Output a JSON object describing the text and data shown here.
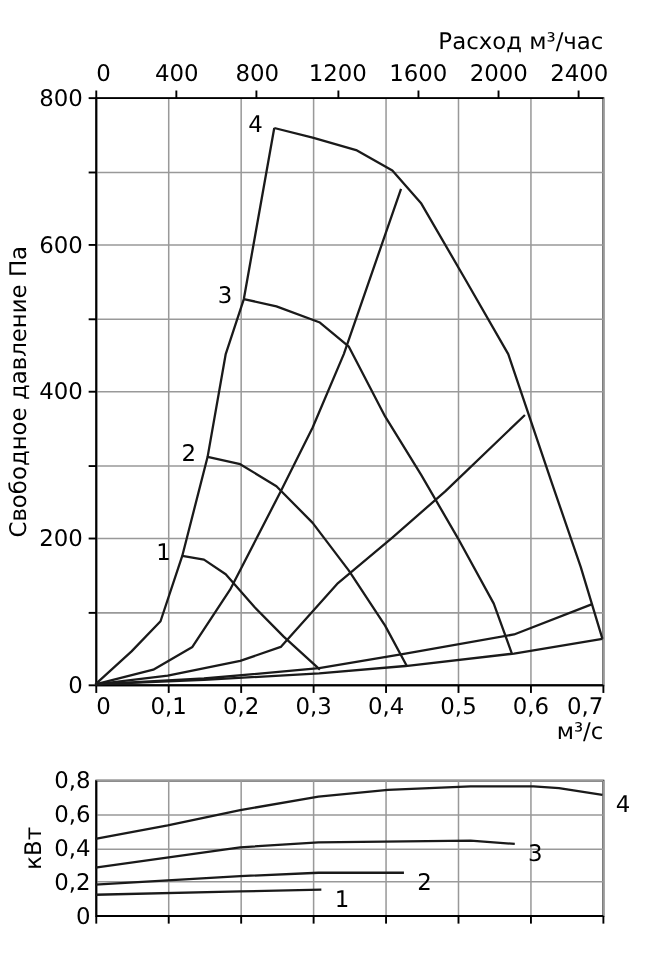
{
  "chart_data": [
    {
      "type": "line",
      "ylabel": "Свободное давление Па",
      "xlabel": "м³/с",
      "x2label": "Расход м³/час",
      "xlim": [
        0,
        0.7
      ],
      "xticks": [
        0,
        {
          "value": 0.1,
          "label": "0,1"
        },
        {
          "value": 0.2,
          "label": "0,2"
        },
        {
          "value": 0.3,
          "label": "0,3"
        },
        {
          "value": 0.4,
          "label": "0,4"
        },
        {
          "value": 0.5,
          "label": "0,5"
        },
        {
          "value": 0.6,
          "label": "0,6"
        },
        {
          "value": 0.7,
          "label": "0,7"
        }
      ],
      "ylim": [
        0,
        800
      ],
      "yticks": [
        0,
        {
          "value": 100,
          "label": null
        },
        200,
        {
          "value": 300,
          "label": null
        },
        400,
        {
          "value": 500,
          "label": null
        },
        600,
        {
          "value": 700,
          "label": null
        },
        800
      ],
      "x2lim": [
        0,
        2520
      ],
      "x2ticks": [
        0,
        400,
        800,
        1200,
        1600,
        2000,
        2400
      ],
      "grid": true,
      "marker": "none",
      "line_style": "solid",
      "series": [
        {
          "color": "#1a1a1a",
          "x": [
            0.12,
            0.15,
            0.18,
            0.22,
            0.26,
            0.31
          ],
          "values": [
            175,
            170,
            150,
            105,
            65,
            20
          ]
        },
        {
          "color": "#1a1a1a",
          "x": [
            0.155,
            0.2,
            0.25,
            0.3,
            0.35,
            0.4,
            0.43
          ],
          "values": [
            310,
            300,
            270,
            220,
            155,
            80,
            25
          ]
        },
        {
          "color": "#1a1a1a",
          "x": [
            0.205,
            0.25,
            0.31,
            0.35,
            0.4,
            0.45,
            0.5,
            0.55,
            0.575
          ],
          "values": [
            525,
            515,
            493,
            460,
            365,
            285,
            200,
            110,
            42
          ]
        },
        {
          "color": "#1a1a1a",
          "x": [
            0.247,
            0.3,
            0.36,
            0.41,
            0.45,
            0.51,
            0.57,
            0.63,
            0.67,
            0.7
          ],
          "values": [
            758,
            745,
            728,
            700,
            655,
            553,
            450,
            275,
            160,
            62
          ]
        },
        {
          "color": "#1a1a1a",
          "x": [
            0,
            0.05,
            0.09,
            0.12,
            0.155,
            0.18,
            0.205,
            0.247
          ],
          "values": [
            0,
            45,
            86,
            175,
            310,
            450,
            525,
            758
          ]
        },
        {
          "color": "#1a1a1a",
          "x": [
            0,
            0.08,
            0.134,
            0.186,
            0.256,
            0.3,
            0.343,
            0.422
          ],
          "values": [
            0,
            20,
            51,
            129,
            263,
            350,
            450,
            675
          ]
        },
        {
          "color": "#1a1a1a",
          "x": [
            0,
            0.1,
            0.2,
            0.256,
            0.335,
            0.41,
            0.483,
            0.593
          ],
          "values": [
            0,
            12,
            32,
            51,
            138,
            200,
            263,
            367
          ]
        },
        {
          "color": "#1a1a1a",
          "x": [
            0,
            0.15,
            0.309,
            0.428,
            0.578,
            0.685
          ],
          "values": [
            0,
            8,
            22,
            42,
            68,
            109
          ]
        },
        {
          "color": "#1a1a1a",
          "x": [
            0,
            0.15,
            0.309,
            0.428,
            0.578,
            0.7
          ],
          "values": [
            0,
            6,
            15,
            25,
            42,
            62
          ]
        }
      ],
      "annotations": [
        {
          "text": "1",
          "x": 0.12,
          "y": 175
        },
        {
          "text": "2",
          "x": 0.155,
          "y": 310
        },
        {
          "text": "3",
          "x": 0.205,
          "y": 525
        },
        {
          "text": "4",
          "x": 0.247,
          "y": 758
        }
      ]
    },
    {
      "type": "line",
      "ylabel": "кВт",
      "tick_labels": "y",
      "xlim": [
        0,
        0.7
      ],
      "xticks": [
        {
          "value": 0,
          "label": null
        },
        {
          "value": 0.1,
          "label": null
        },
        {
          "value": 0.2,
          "label": null
        },
        {
          "value": 0.3,
          "label": null
        },
        {
          "value": 0.4,
          "label": null
        },
        {
          "value": 0.5,
          "label": null
        },
        {
          "value": 0.6,
          "label": null
        },
        {
          "value": 0.7,
          "label": null
        }
      ],
      "ylim": [
        0,
        0.8
      ],
      "yticks": [
        0,
        {
          "value": 0.2,
          "label": "0,2"
        },
        {
          "value": 0.4,
          "label": "0,4"
        },
        {
          "value": 0.6,
          "label": "0,6"
        },
        {
          "value": 0.8,
          "label": "0,8"
        }
      ],
      "grid": true,
      "marker": "none",
      "line_style": "solid",
      "series": [
        {
          "color": "#1a1a1a",
          "x": [
            0,
            0.2,
            0.312
          ],
          "values": [
            0.12,
            0.14,
            0.15
          ]
        },
        {
          "color": "#1a1a1a",
          "x": [
            0,
            0.2,
            0.308,
            0.426
          ],
          "values": [
            0.18,
            0.23,
            0.25,
            0.25
          ]
        },
        {
          "color": "#1a1a1a",
          "x": [
            0,
            0.2,
            0.308,
            0.518,
            0.579
          ],
          "values": [
            0.28,
            0.4,
            0.43,
            0.44,
            0.42
          ]
        },
        {
          "color": "#1a1a1a",
          "x": [
            0,
            0.1,
            0.2,
            0.308,
            0.404,
            0.518,
            0.605,
            0.64,
            0.7
          ],
          "values": [
            0.45,
            0.53,
            0.62,
            0.7,
            0.74,
            0.76,
            0.76,
            0.75,
            0.71
          ]
        }
      ],
      "annotations": [
        {
          "text": "1",
          "x": 0.312,
          "y": 0.15
        },
        {
          "text": "2",
          "x": 0.426,
          "y": 0.25
        },
        {
          "text": "3",
          "x": 0.579,
          "y": 0.42
        },
        {
          "text": "4",
          "x": 0.7,
          "y": 0.71
        }
      ]
    }
  ]
}
